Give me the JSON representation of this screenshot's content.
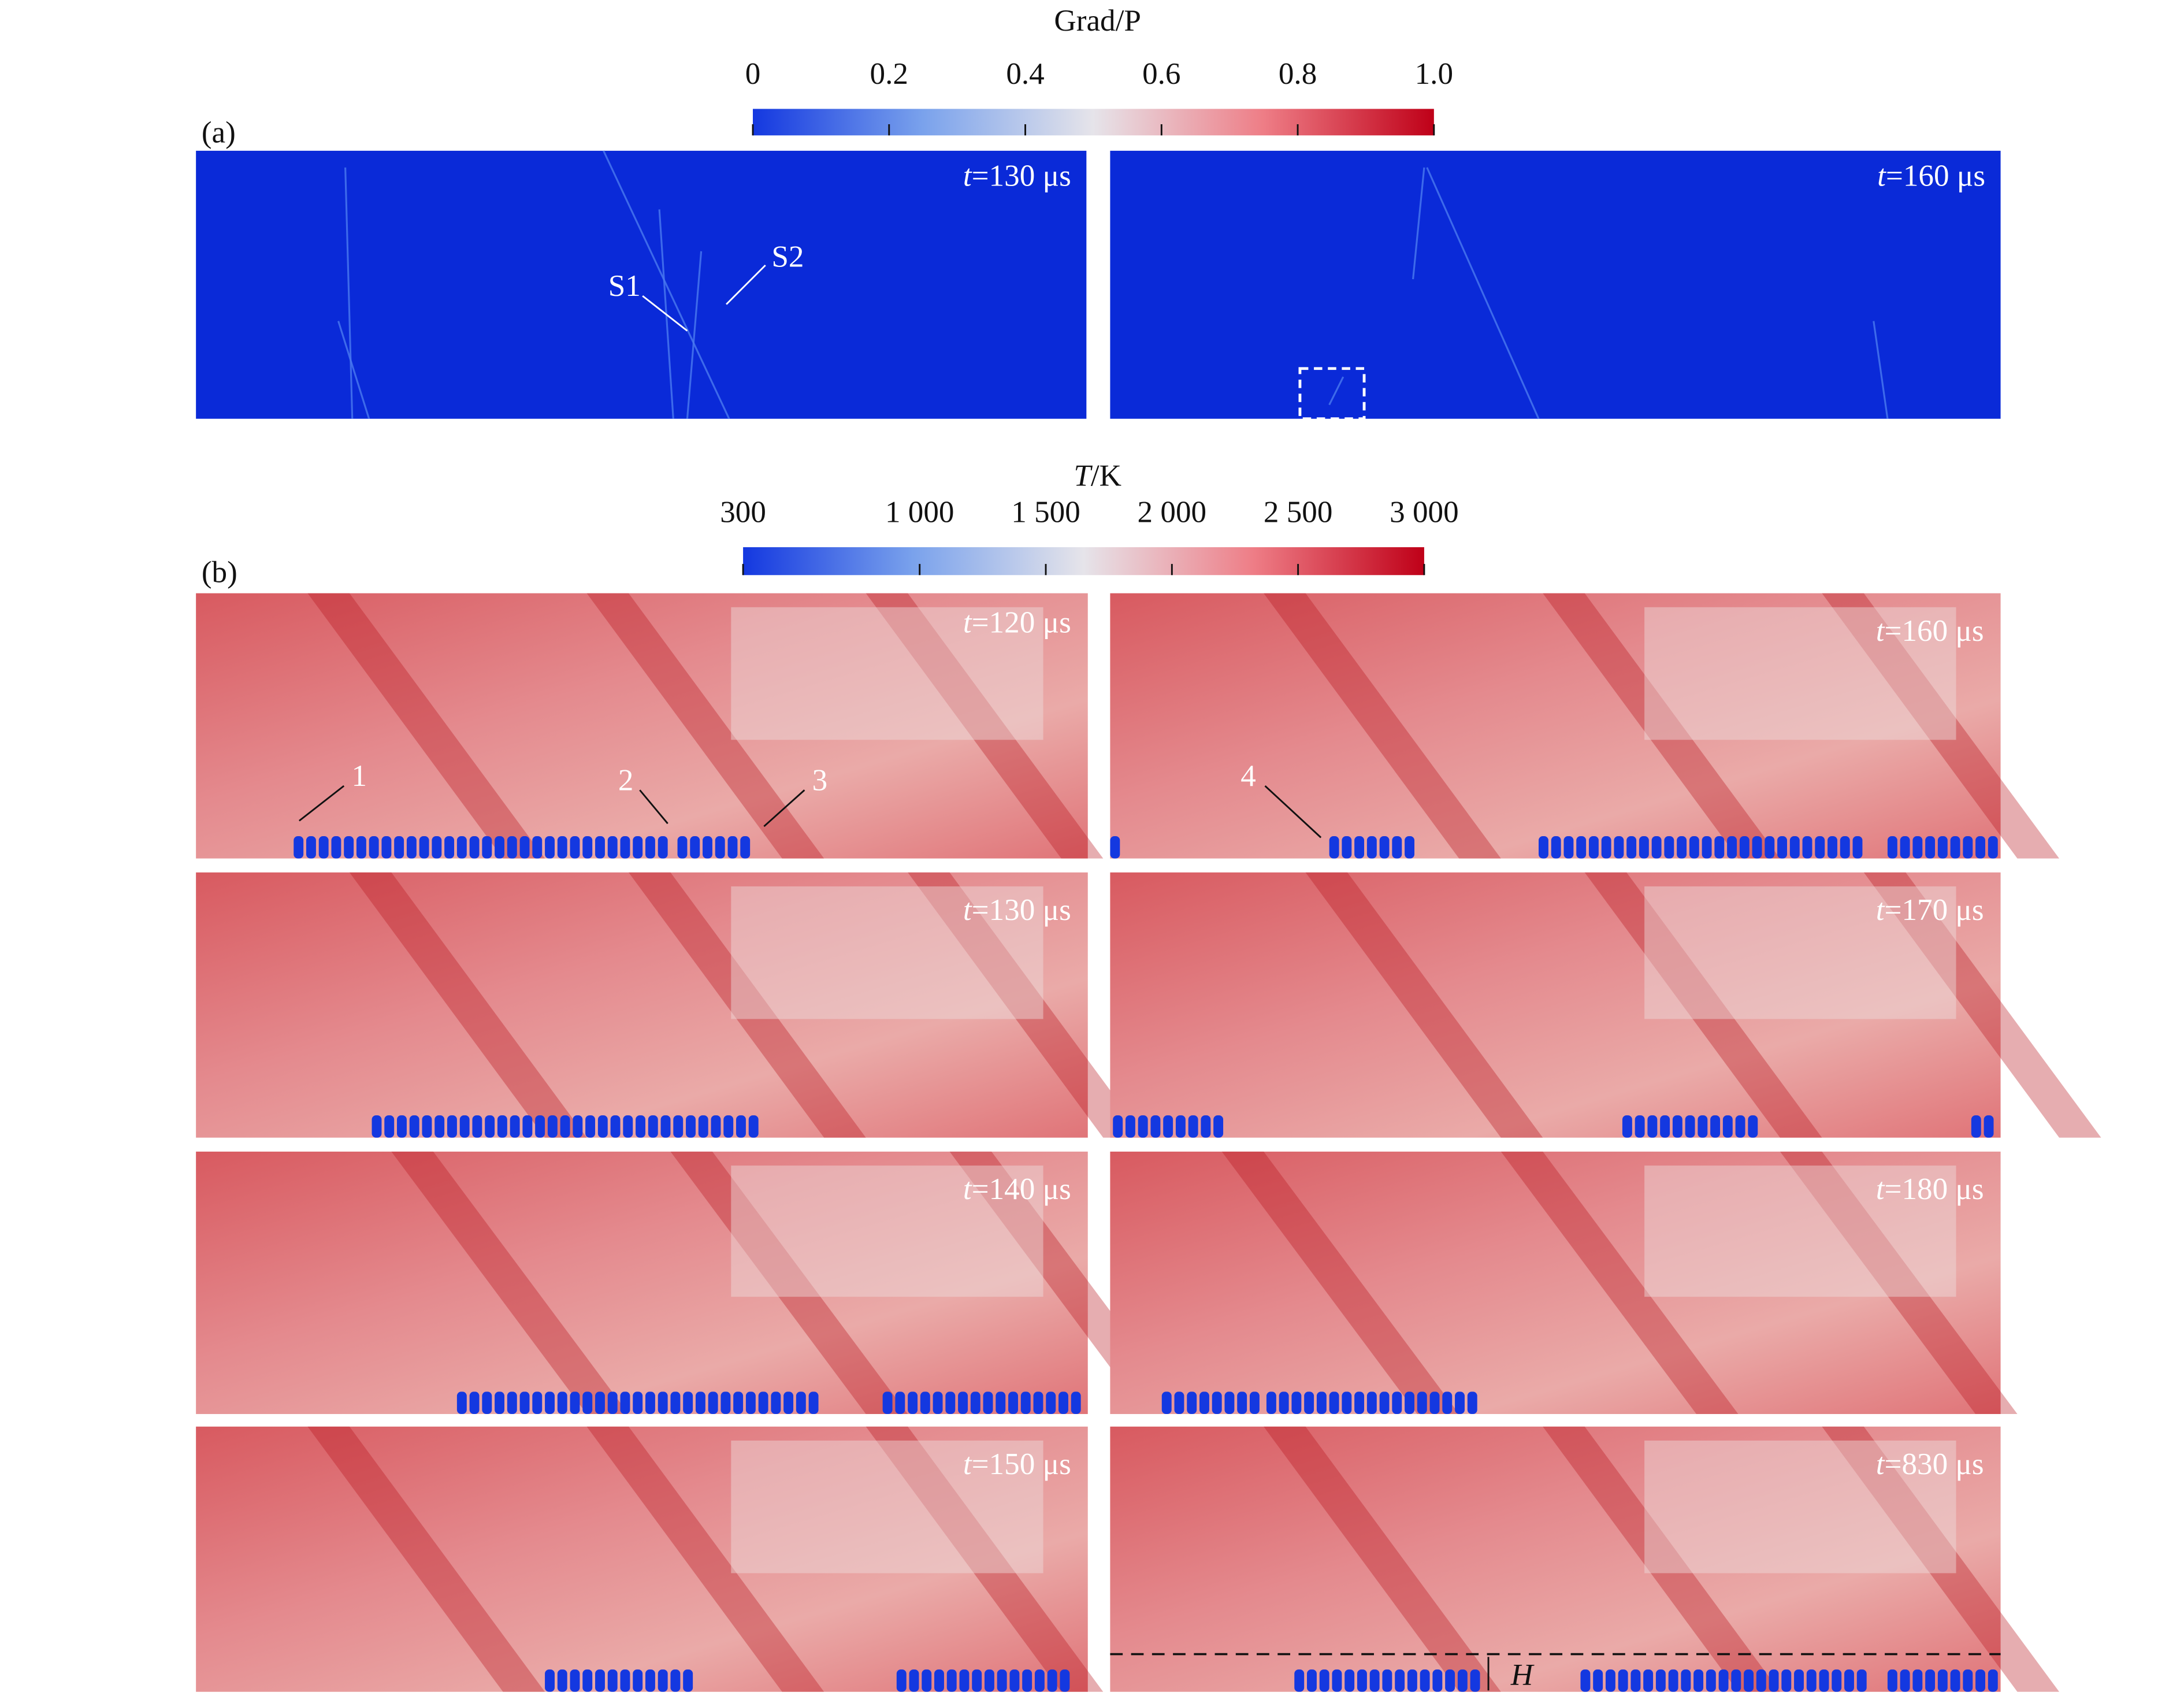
{
  "figure_a": {
    "label": "(a)",
    "colorbar": {
      "title": "Grad/P",
      "lim": [
        0,
        1
      ],
      "ticks": [
        0,
        0.2,
        0.4,
        0.6,
        0.8,
        {
          "value": 1,
          "label": "1.0"
        }
      ]
    },
    "panels": [
      {
        "var": "t",
        "time": "=130 μs"
      },
      {
        "var": "t",
        "time": "=160 μs"
      }
    ],
    "annotations": [
      "S1",
      "S2"
    ]
  },
  "figure_b": {
    "label": "(b)",
    "colorbar": {
      "title_var": "T",
      "title_unit": "/K",
      "lim": [
        300,
        3000
      ],
      "ticks": [
        300,
        {
          "value": 1000,
          "label": "1 000"
        },
        {
          "value": 1500,
          "label": "1 500"
        },
        {
          "value": 2000,
          "label": "2 000"
        },
        {
          "value": 2500,
          "label": "2 500"
        },
        {
          "value": 3000,
          "label": "3 000"
        }
      ]
    },
    "panels": [
      {
        "var": "t",
        "time": "=120 μs"
      },
      {
        "var": "t",
        "time": "=130 μs"
      },
      {
        "var": "t",
        "time": "=140 μs"
      },
      {
        "var": "t",
        "time": "=150 μs"
      },
      {
        "var": "t",
        "time": "=160 μs"
      },
      {
        "var": "t",
        "time": "=170 μs"
      },
      {
        "var": "t",
        "time": "=180 μs"
      },
      {
        "var": "t",
        "time": "=830 μs"
      }
    ],
    "annotations": [
      "1",
      "2",
      "3",
      "4"
    ],
    "height_label": "H"
  }
}
